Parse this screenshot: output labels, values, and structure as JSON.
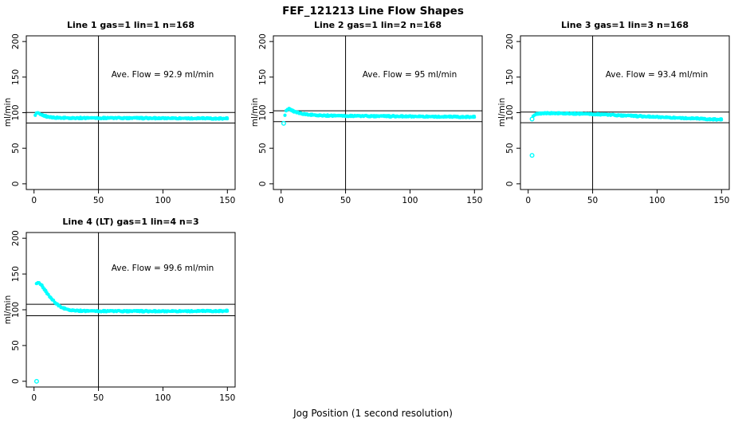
{
  "page_title": "FEF_121213  Line Flow Shapes",
  "x_axis_label": "Jog Position (1 second resolution)",
  "colors": {
    "points": "#00ffff",
    "axis": "#000000",
    "text": "#000000",
    "background": "#ffffff"
  },
  "chart_data": [
    {
      "type": "scatter",
      "title": "Line 1 gas=1 lin=1 n=168",
      "annotation": "Ave. Flow =  92.9  ml/min",
      "ave_flow_ml_min": 92.9,
      "n": 168,
      "ylabel": "ml/min",
      "xlim": [
        -6,
        156
      ],
      "ylim": [
        -8,
        208
      ],
      "xticks": [
        0,
        50,
        100,
        150
      ],
      "yticks": [
        0,
        50,
        100,
        150,
        200
      ],
      "ref_hlines": [
        100.3,
        85.5
      ],
      "ref_vline": 50,
      "band_points": [
        [
          1,
          97
        ],
        [
          2,
          99
        ],
        [
          3,
          99.5
        ],
        [
          4,
          98.5
        ],
        [
          6,
          96.5
        ],
        [
          8,
          95.5
        ],
        [
          10,
          94.5
        ],
        [
          13,
          93.5
        ],
        [
          16,
          93
        ],
        [
          20,
          92.8
        ],
        [
          30,
          92.6
        ],
        [
          50,
          92.5
        ],
        [
          70,
          92.4
        ],
        [
          90,
          92.3
        ],
        [
          110,
          92.2
        ],
        [
          130,
          92
        ],
        [
          150,
          91.8
        ]
      ],
      "outlier_points": []
    },
    {
      "type": "scatter",
      "title": "Line 2 gas=1 lin=2 n=168",
      "annotation": "Ave. Flow =  95  ml/min",
      "ave_flow_ml_min": 95,
      "n": 168,
      "ylabel": "ml/min",
      "xlim": [
        -6,
        156
      ],
      "ylim": [
        -8,
        208
      ],
      "xticks": [
        0,
        50,
        100,
        150
      ],
      "yticks": [
        0,
        50,
        100,
        150,
        200
      ],
      "ref_hlines": [
        102.6,
        87.4
      ],
      "ref_vline": 50,
      "band_points": [
        [
          3,
          96
        ],
        [
          4,
          102
        ],
        [
          5,
          104.5
        ],
        [
          6,
          105
        ],
        [
          7,
          104.5
        ],
        [
          9,
          102.5
        ],
        [
          12,
          100.5
        ],
        [
          15,
          99
        ],
        [
          18,
          98
        ],
        [
          22,
          97.2
        ],
        [
          28,
          96.5
        ],
        [
          35,
          96
        ],
        [
          45,
          95.7
        ],
        [
          60,
          95.3
        ],
        [
          80,
          95
        ],
        [
          100,
          94.8
        ],
        [
          120,
          94.5
        ],
        [
          150,
          94
        ]
      ],
      "outlier_points": [
        [
          2,
          85
        ]
      ]
    },
    {
      "type": "scatter",
      "title": "Line 3 gas=1 lin=3 n=168",
      "annotation": "Ave. Flow =  93.4  ml/min",
      "ave_flow_ml_min": 93.4,
      "n": 168,
      "ylabel": "ml/min",
      "xlim": [
        -6,
        156
      ],
      "ylim": [
        -8,
        208
      ],
      "xticks": [
        0,
        50,
        100,
        150
      ],
      "yticks": [
        0,
        50,
        100,
        150,
        200
      ],
      "ref_hlines": [
        100.9,
        85.9
      ],
      "ref_vline": 50,
      "band_points": [
        [
          4,
          94.5
        ],
        [
          5,
          96.5
        ],
        [
          6,
          97.5
        ],
        [
          8,
          98.5
        ],
        [
          10,
          99
        ],
        [
          15,
          99.2
        ],
        [
          20,
          99.2
        ],
        [
          25,
          99.1
        ],
        [
          30,
          99
        ],
        [
          35,
          98.8
        ],
        [
          40,
          98.5
        ],
        [
          50,
          98
        ],
        [
          60,
          97.2
        ],
        [
          70,
          96.3
        ],
        [
          80,
          95.5
        ],
        [
          90,
          94.8
        ],
        [
          100,
          94
        ],
        [
          110,
          93.2
        ],
        [
          120,
          92.5
        ],
        [
          130,
          91.8
        ],
        [
          140,
          91
        ],
        [
          150,
          90.3
        ]
      ],
      "outlier_points": [
        [
          3,
          40
        ],
        [
          3,
          91
        ]
      ]
    },
    {
      "type": "scatter",
      "title": "Line 4 (LT) gas=1 lin=4 n=3",
      "annotation": "Ave. Flow =  99.6  ml/min",
      "ave_flow_ml_min": 99.6,
      "n": 3,
      "ylabel": "ml/min",
      "xlim": [
        -6,
        156
      ],
      "ylim": [
        -8,
        208
      ],
      "xticks": [
        0,
        50,
        100,
        150
      ],
      "yticks": [
        0,
        50,
        100,
        150,
        200
      ],
      "ref_hlines": [
        107.6,
        91.6
      ],
      "ref_vline": 50,
      "band_points": [
        [
          2,
          136
        ],
        [
          3,
          137.5
        ],
        [
          4,
          137
        ],
        [
          5,
          135.5
        ],
        [
          6,
          133.5
        ],
        [
          7,
          131
        ],
        [
          8,
          128.5
        ],
        [
          9,
          126
        ],
        [
          10,
          123.5
        ],
        [
          11,
          121
        ],
        [
          12,
          118.5
        ],
        [
          13,
          116.5
        ],
        [
          14,
          114.5
        ],
        [
          15,
          112.5
        ],
        [
          16,
          110.5
        ],
        [
          17,
          109
        ],
        [
          18,
          107.5
        ],
        [
          19,
          106
        ],
        [
          20,
          104.8
        ],
        [
          22,
          103
        ],
        [
          24,
          101.5
        ],
        [
          26,
          100.5
        ],
        [
          28,
          99.8
        ],
        [
          30,
          99.3
        ],
        [
          35,
          98.7
        ],
        [
          40,
          98.4
        ],
        [
          50,
          98.2
        ],
        [
          60,
          98.1
        ],
        [
          80,
          98
        ],
        [
          100,
          98
        ],
        [
          120,
          98.2
        ],
        [
          150,
          98.3
        ]
      ],
      "outlier_points": [
        [
          2,
          0
        ]
      ]
    }
  ]
}
